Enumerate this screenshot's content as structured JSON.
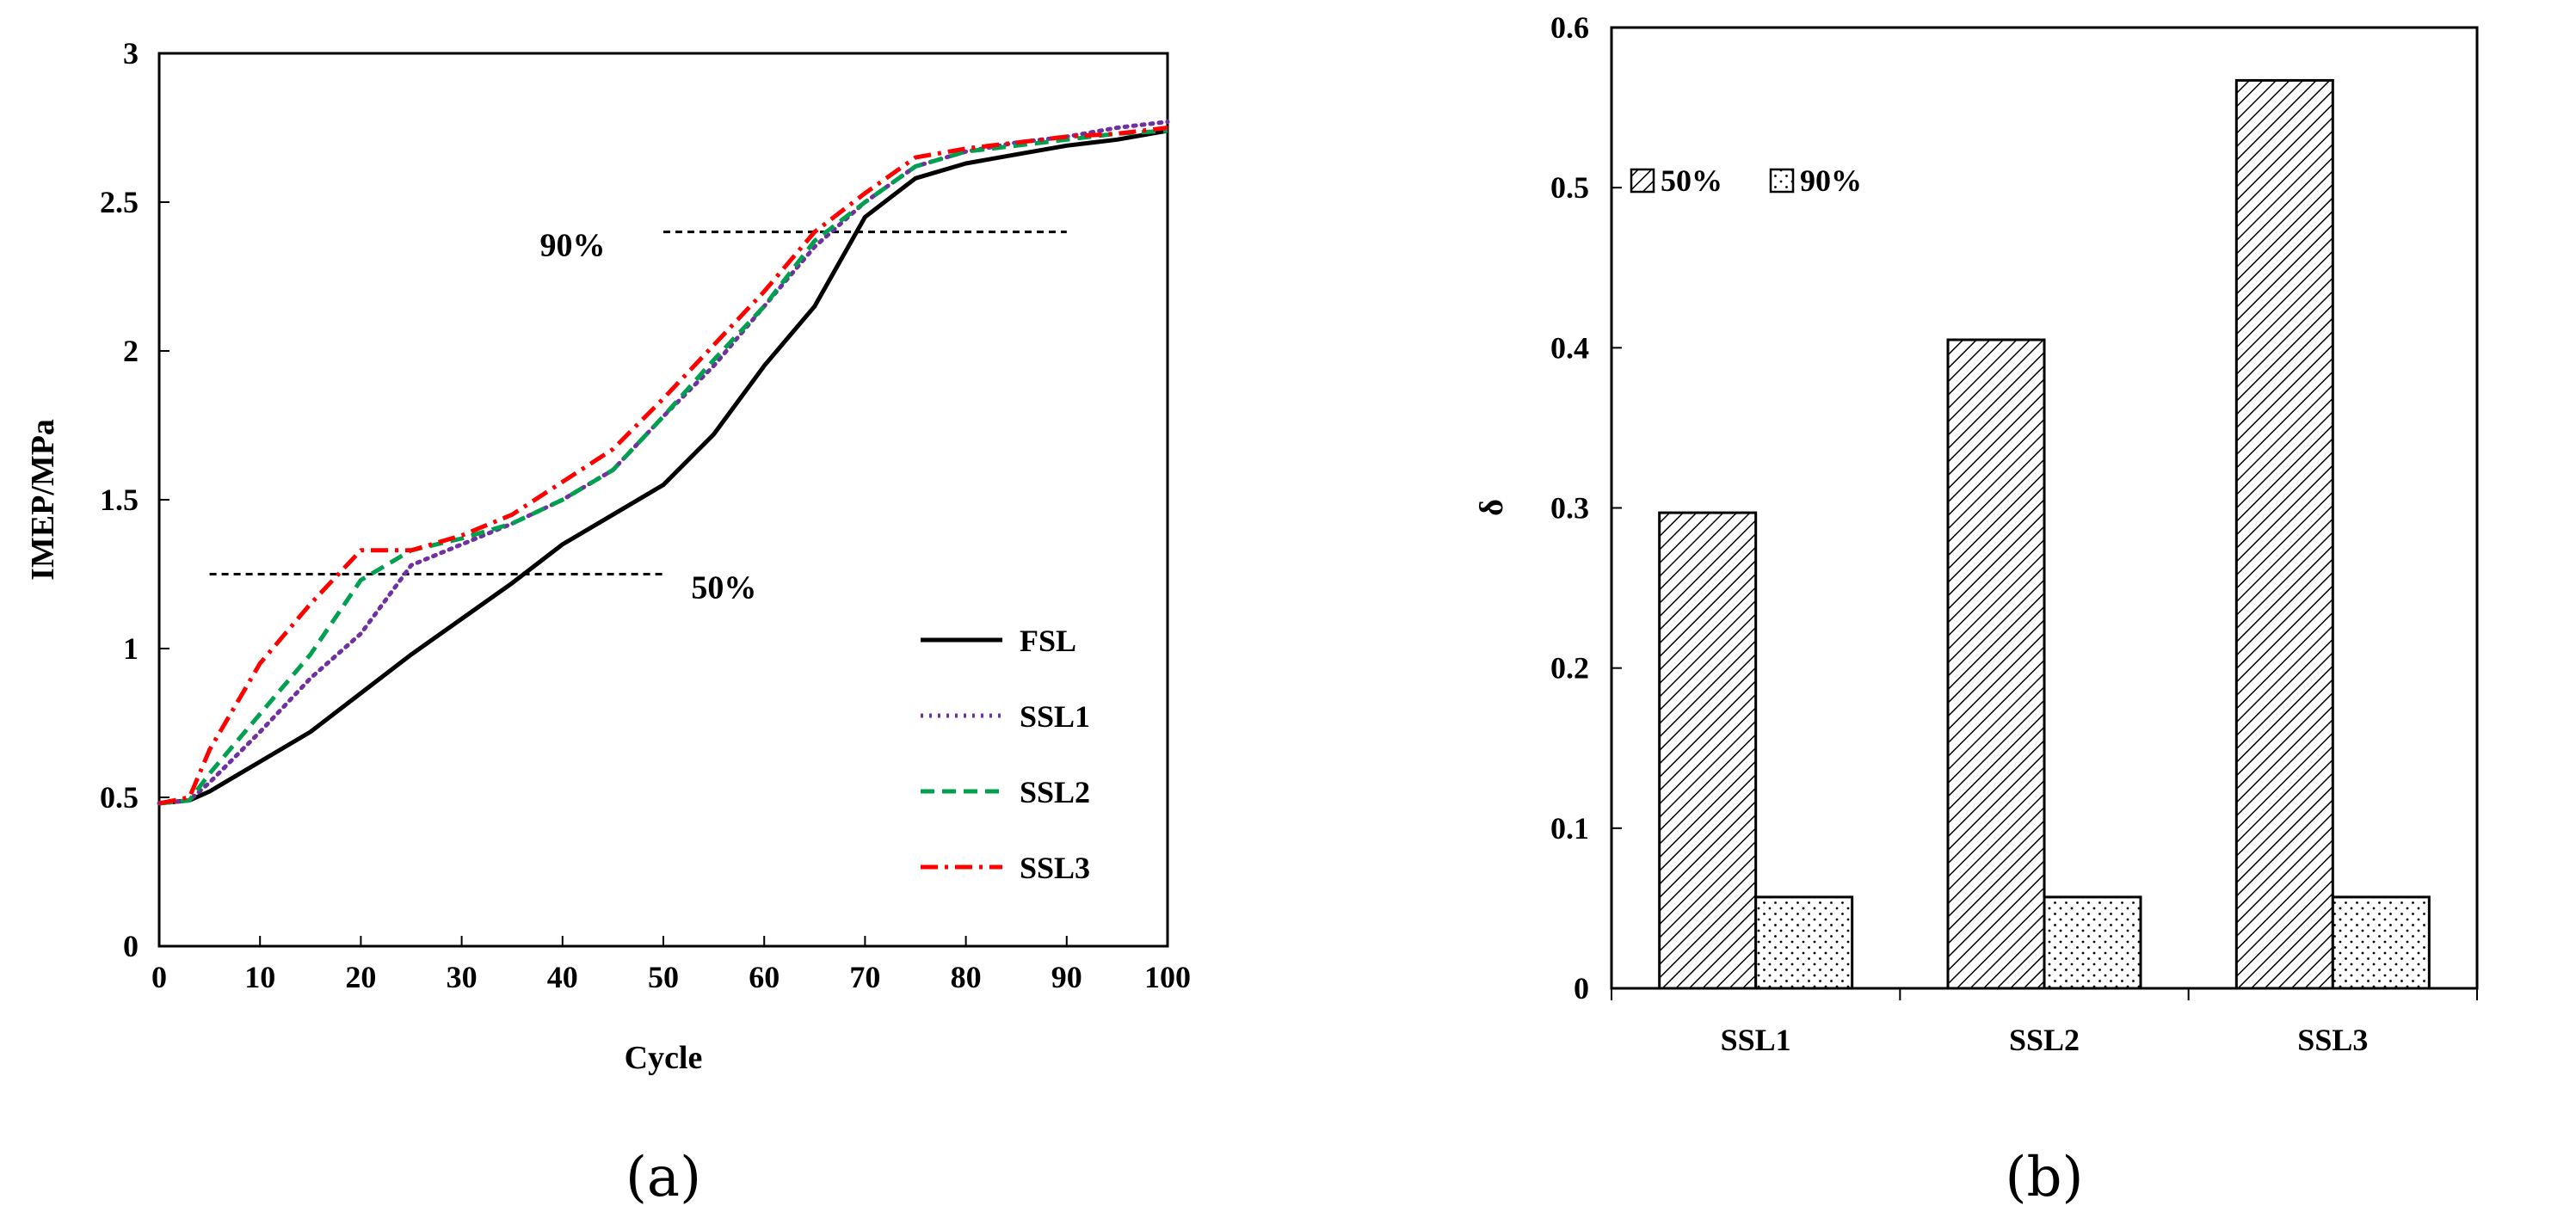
{
  "chart_data": [
    {
      "type": "line",
      "panel_label": "(a)",
      "xlabel": "Cycle",
      "ylabel": "IMEP/MPa",
      "xlim": [
        0,
        100
      ],
      "ylim": [
        0,
        3
      ],
      "xticks": [
        "0",
        "10",
        "20",
        "30",
        "40",
        "50",
        "60",
        "70",
        "80",
        "90",
        "100"
      ],
      "yticks": [
        "0",
        "0.5",
        "1",
        "1.5",
        "2",
        "2.5",
        "3"
      ],
      "legend_position": "bottom-right",
      "annotations": [
        {
          "text": "50%",
          "y": 1.25,
          "x_from": 5,
          "x_to": 50,
          "label_x": 56
        },
        {
          "text": "90%",
          "y": 2.4,
          "x_from": 50,
          "x_to": 90,
          "label_x": 41
        }
      ],
      "series": [
        {
          "name": "FSL",
          "color": "#000000",
          "style": "solid",
          "x": [
            0,
            3,
            5,
            10,
            15,
            20,
            25,
            30,
            35,
            40,
            45,
            50,
            55,
            60,
            65,
            70,
            75,
            80,
            85,
            90,
            95,
            100
          ],
          "y": [
            0.48,
            0.49,
            0.52,
            0.62,
            0.72,
            0.85,
            0.98,
            1.1,
            1.22,
            1.35,
            1.45,
            1.55,
            1.72,
            1.95,
            2.15,
            2.45,
            2.58,
            2.63,
            2.66,
            2.69,
            2.71,
            2.74
          ]
        },
        {
          "name": "SSL1",
          "color": "#7030A0",
          "style": "dotted",
          "x": [
            0,
            3,
            5,
            10,
            15,
            20,
            25,
            30,
            35,
            40,
            45,
            50,
            55,
            60,
            65,
            70,
            75,
            80,
            85,
            90,
            95,
            100
          ],
          "y": [
            0.48,
            0.49,
            0.55,
            0.72,
            0.9,
            1.05,
            1.28,
            1.35,
            1.42,
            1.5,
            1.6,
            1.78,
            1.95,
            2.15,
            2.35,
            2.5,
            2.62,
            2.67,
            2.7,
            2.72,
            2.75,
            2.77
          ]
        },
        {
          "name": "SSL2",
          "color": "#00A050",
          "style": "dashed",
          "x": [
            0,
            3,
            5,
            10,
            15,
            20,
            25,
            30,
            35,
            40,
            45,
            50,
            55,
            60,
            65,
            70,
            75,
            80,
            85,
            90,
            95,
            100
          ],
          "y": [
            0.48,
            0.49,
            0.58,
            0.78,
            0.98,
            1.23,
            1.33,
            1.37,
            1.42,
            1.5,
            1.6,
            1.78,
            1.97,
            2.15,
            2.37,
            2.5,
            2.62,
            2.67,
            2.69,
            2.71,
            2.73,
            2.74
          ]
        },
        {
          "name": "SSL3",
          "color": "#FF0000",
          "style": "dashdot",
          "x": [
            0,
            3,
            5,
            10,
            15,
            20,
            25,
            30,
            35,
            40,
            45,
            50,
            55,
            60,
            65,
            70,
            75,
            80,
            85,
            90,
            95,
            100
          ],
          "y": [
            0.48,
            0.5,
            0.66,
            0.95,
            1.15,
            1.33,
            1.33,
            1.38,
            1.45,
            1.56,
            1.67,
            1.84,
            2.02,
            2.2,
            2.4,
            2.53,
            2.65,
            2.68,
            2.7,
            2.72,
            2.73,
            2.75
          ]
        }
      ]
    },
    {
      "type": "bar",
      "panel_label": "(b)",
      "xlabel": "",
      "ylabel": "δ",
      "ylim": [
        0,
        0.6
      ],
      "yticks": [
        "0",
        "0.1",
        "0.2",
        "0.3",
        "0.4",
        "0.5",
        "0.6"
      ],
      "categories": [
        "SSL1",
        "SSL2",
        "SSL3"
      ],
      "legend_position": "top-left",
      "series": [
        {
          "name": "50%",
          "pattern": "hatch",
          "values": [
            0.297,
            0.405,
            0.567
          ]
        },
        {
          "name": "90%",
          "pattern": "dots",
          "values": [
            0.057,
            0.057,
            0.057
          ]
        }
      ]
    }
  ]
}
